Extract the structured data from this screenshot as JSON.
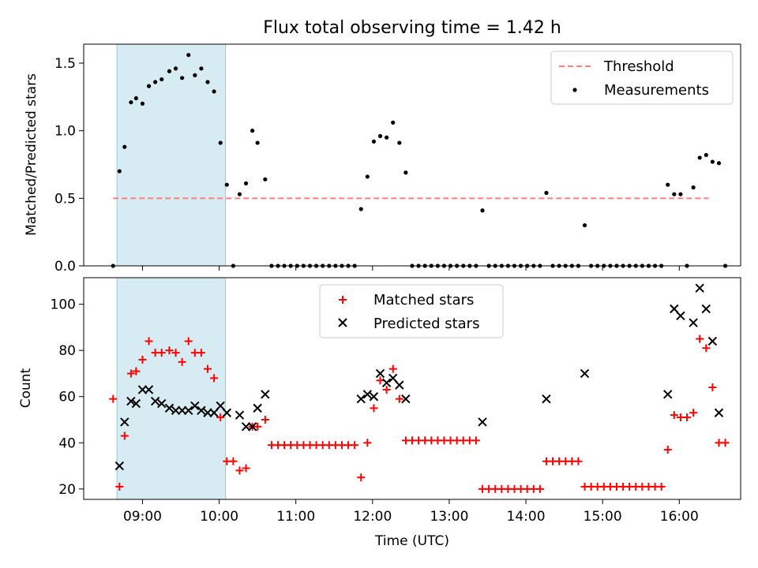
{
  "figure_title": "Flux total observing time = 1.42 h",
  "colors": {
    "threshold": "#ff7f7f",
    "measurements": "#000000",
    "matched": "#ff0000",
    "predicted": "#000000",
    "highlight": "#add8e6"
  },
  "chart_data": [
    {
      "type": "scatter",
      "title": "Flux total observing time = 1.42 h",
      "xlabel": "",
      "ylabel": "Matched/Predicted stars",
      "xlim": [
        "08:14",
        "16:48"
      ],
      "ylim": [
        0,
        1.64
      ],
      "xticks": [
        "09:00",
        "10:00",
        "11:00",
        "12:00",
        "13:00",
        "14:00",
        "15:00",
        "16:00"
      ],
      "yticks": [
        "0.0",
        "0.5",
        "1.0",
        "1.5"
      ],
      "highlight_span": [
        "08:40",
        "10:05"
      ],
      "legend_position": "top-right",
      "threshold": {
        "name": "Threshold",
        "value": 0.5,
        "x_range": [
          "08:37",
          "16:23"
        ]
      },
      "series": [
        {
          "name": "Measurements",
          "marker": "dot",
          "points": [
            [
              "08:37",
              0.0
            ],
            [
              "08:42",
              0.7
            ],
            [
              "08:46",
              0.88
            ],
            [
              "08:51",
              1.21
            ],
            [
              "08:55",
              1.24
            ],
            [
              "09:00",
              1.2
            ],
            [
              "09:05",
              1.33
            ],
            [
              "09:10",
              1.36
            ],
            [
              "09:15",
              1.38
            ],
            [
              "09:21",
              1.44
            ],
            [
              "09:26",
              1.46
            ],
            [
              "09:31",
              1.39
            ],
            [
              "09:36",
              1.56
            ],
            [
              "09:41",
              1.41
            ],
            [
              "09:46",
              1.46
            ],
            [
              "09:51",
              1.36
            ],
            [
              "09:56",
              1.29
            ],
            [
              "10:01",
              0.91
            ],
            [
              "10:06",
              0.6
            ],
            [
              "10:11",
              0.0
            ],
            [
              "10:16",
              0.53
            ],
            [
              "10:21",
              0.61
            ],
            [
              "10:26",
              1.0
            ],
            [
              "10:30",
              0.91
            ],
            [
              "10:36",
              0.64
            ],
            [
              "10:41",
              0.0
            ],
            [
              "10:46",
              0.0
            ],
            [
              "10:51",
              0.0
            ],
            [
              "10:56",
              0.0
            ],
            [
              "11:01",
              0.0
            ],
            [
              "11:06",
              0.0
            ],
            [
              "11:11",
              0.0
            ],
            [
              "11:16",
              0.0
            ],
            [
              "11:21",
              0.0
            ],
            [
              "11:26",
              0.0
            ],
            [
              "11:31",
              0.0
            ],
            [
              "11:36",
              0.0
            ],
            [
              "11:41",
              0.0
            ],
            [
              "11:46",
              0.0
            ],
            [
              "11:51",
              0.42
            ],
            [
              "11:56",
              0.66
            ],
            [
              "12:01",
              0.92
            ],
            [
              "12:06",
              0.96
            ],
            [
              "12:11",
              0.95
            ],
            [
              "12:16",
              1.06
            ],
            [
              "12:21",
              0.91
            ],
            [
              "12:26",
              0.69
            ],
            [
              "12:31",
              0.0
            ],
            [
              "12:36",
              0.0
            ],
            [
              "12:41",
              0.0
            ],
            [
              "12:46",
              0.0
            ],
            [
              "12:51",
              0.0
            ],
            [
              "12:56",
              0.0
            ],
            [
              "13:01",
              0.0
            ],
            [
              "13:06",
              0.0
            ],
            [
              "13:11",
              0.0
            ],
            [
              "13:16",
              0.0
            ],
            [
              "13:21",
              0.0
            ],
            [
              "13:26",
              0.41
            ],
            [
              "13:31",
              0.0
            ],
            [
              "13:36",
              0.0
            ],
            [
              "13:41",
              0.0
            ],
            [
              "13:46",
              0.0
            ],
            [
              "13:51",
              0.0
            ],
            [
              "13:56",
              0.0
            ],
            [
              "14:01",
              0.0
            ],
            [
              "14:06",
              0.0
            ],
            [
              "14:11",
              0.0
            ],
            [
              "14:16",
              0.54
            ],
            [
              "14:21",
              0.0
            ],
            [
              "14:26",
              0.0
            ],
            [
              "14:31",
              0.0
            ],
            [
              "14:36",
              0.0
            ],
            [
              "14:41",
              0.0
            ],
            [
              "14:46",
              0.3
            ],
            [
              "14:51",
              0.0
            ],
            [
              "14:56",
              0.0
            ],
            [
              "15:01",
              0.0
            ],
            [
              "15:06",
              0.0
            ],
            [
              "15:11",
              0.0
            ],
            [
              "15:16",
              0.0
            ],
            [
              "15:21",
              0.0
            ],
            [
              "15:26",
              0.0
            ],
            [
              "15:31",
              0.0
            ],
            [
              "15:36",
              0.0
            ],
            [
              "15:41",
              0.0
            ],
            [
              "15:46",
              0.0
            ],
            [
              "15:51",
              0.6
            ],
            [
              "15:56",
              0.53
            ],
            [
              "16:01",
              0.53
            ],
            [
              "16:06",
              0.0
            ],
            [
              "16:11",
              0.58
            ],
            [
              "16:16",
              0.8
            ],
            [
              "16:21",
              0.82
            ],
            [
              "16:26",
              0.77
            ],
            [
              "16:31",
              0.76
            ],
            [
              "16:36",
              0.0
            ]
          ]
        }
      ]
    },
    {
      "type": "scatter",
      "title": "",
      "xlabel": "Time (UTC)",
      "ylabel": "Count",
      "xlim": [
        "08:14",
        "16:48"
      ],
      "ylim": [
        15.5,
        111.5
      ],
      "xticks": [
        "09:00",
        "10:00",
        "11:00",
        "12:00",
        "13:00",
        "14:00",
        "15:00",
        "16:00"
      ],
      "yticks": [
        "20",
        "40",
        "60",
        "80",
        "100"
      ],
      "highlight_span": [
        "08:40",
        "10:05"
      ],
      "legend_position": "top-center",
      "series": [
        {
          "name": "Matched stars",
          "marker": "plus",
          "points": [
            [
              "08:37",
              59
            ],
            [
              "08:42",
              21
            ],
            [
              "08:46",
              43
            ],
            [
              "08:51",
              70
            ],
            [
              "08:55",
              71
            ],
            [
              "09:00",
              76
            ],
            [
              "09:05",
              84
            ],
            [
              "09:10",
              79
            ],
            [
              "09:15",
              79
            ],
            [
              "09:21",
              80
            ],
            [
              "09:26",
              79
            ],
            [
              "09:31",
              75
            ],
            [
              "09:36",
              84
            ],
            [
              "09:41",
              79
            ],
            [
              "09:46",
              79
            ],
            [
              "09:51",
              72
            ],
            [
              "09:56",
              68
            ],
            [
              "10:01",
              51
            ],
            [
              "10:06",
              32
            ],
            [
              "10:11",
              32
            ],
            [
              "10:16",
              28
            ],
            [
              "10:21",
              29
            ],
            [
              "10:26",
              47
            ],
            [
              "10:30",
              47
            ],
            [
              "10:36",
              50
            ],
            [
              "10:41",
              39
            ],
            [
              "10:46",
              39
            ],
            [
              "10:51",
              39
            ],
            [
              "10:56",
              39
            ],
            [
              "11:01",
              39
            ],
            [
              "11:06",
              39
            ],
            [
              "11:11",
              39
            ],
            [
              "11:16",
              39
            ],
            [
              "11:21",
              39
            ],
            [
              "11:26",
              39
            ],
            [
              "11:31",
              39
            ],
            [
              "11:36",
              39
            ],
            [
              "11:41",
              39
            ],
            [
              "11:46",
              39
            ],
            [
              "11:51",
              25
            ],
            [
              "11:56",
              40
            ],
            [
              "12:01",
              55
            ],
            [
              "12:06",
              67
            ],
            [
              "12:11",
              63
            ],
            [
              "12:16",
              72
            ],
            [
              "12:21",
              59
            ],
            [
              "12:26",
              41
            ],
            [
              "12:31",
              41
            ],
            [
              "12:36",
              41
            ],
            [
              "12:41",
              41
            ],
            [
              "12:46",
              41
            ],
            [
              "12:51",
              41
            ],
            [
              "12:56",
              41
            ],
            [
              "13:01",
              41
            ],
            [
              "13:06",
              41
            ],
            [
              "13:11",
              41
            ],
            [
              "13:16",
              41
            ],
            [
              "13:21",
              41
            ],
            [
              "13:26",
              20
            ],
            [
              "13:31",
              20
            ],
            [
              "13:36",
              20
            ],
            [
              "13:41",
              20
            ],
            [
              "13:46",
              20
            ],
            [
              "13:51",
              20
            ],
            [
              "13:56",
              20
            ],
            [
              "14:01",
              20
            ],
            [
              "14:06",
              20
            ],
            [
              "14:11",
              20
            ],
            [
              "14:16",
              32
            ],
            [
              "14:21",
              32
            ],
            [
              "14:26",
              32
            ],
            [
              "14:31",
              32
            ],
            [
              "14:36",
              32
            ],
            [
              "14:41",
              32
            ],
            [
              "14:46",
              21
            ],
            [
              "14:51",
              21
            ],
            [
              "14:56",
              21
            ],
            [
              "15:01",
              21
            ],
            [
              "15:06",
              21
            ],
            [
              "15:11",
              21
            ],
            [
              "15:16",
              21
            ],
            [
              "15:21",
              21
            ],
            [
              "15:26",
              21
            ],
            [
              "15:31",
              21
            ],
            [
              "15:36",
              21
            ],
            [
              "15:41",
              21
            ],
            [
              "15:46",
              21
            ],
            [
              "15:51",
              37
            ],
            [
              "15:56",
              52
            ],
            [
              "16:01",
              51
            ],
            [
              "16:06",
              51
            ],
            [
              "16:11",
              53
            ],
            [
              "16:16",
              85
            ],
            [
              "16:21",
              81
            ],
            [
              "16:26",
              64
            ],
            [
              "16:31",
              40
            ],
            [
              "16:36",
              40
            ]
          ]
        },
        {
          "name": "Predicted stars",
          "marker": "x",
          "points": [
            [
              "08:42",
              30
            ],
            [
              "08:46",
              49
            ],
            [
              "08:51",
              58
            ],
            [
              "08:55",
              57
            ],
            [
              "09:00",
              63
            ],
            [
              "09:05",
              63
            ],
            [
              "09:10",
              58
            ],
            [
              "09:15",
              57
            ],
            [
              "09:21",
              55
            ],
            [
              "09:26",
              54
            ],
            [
              "09:31",
              54
            ],
            [
              "09:36",
              54
            ],
            [
              "09:41",
              56
            ],
            [
              "09:46",
              54
            ],
            [
              "09:51",
              53
            ],
            [
              "09:56",
              53
            ],
            [
              "10:01",
              56
            ],
            [
              "10:06",
              53
            ],
            [
              "10:16",
              52
            ],
            [
              "10:21",
              47
            ],
            [
              "10:26",
              47
            ],
            [
              "10:30",
              55
            ],
            [
              "10:36",
              61
            ],
            [
              "11:51",
              59
            ],
            [
              "11:56",
              61
            ],
            [
              "12:01",
              60
            ],
            [
              "12:06",
              70
            ],
            [
              "12:11",
              66
            ],
            [
              "12:16",
              68
            ],
            [
              "12:21",
              65
            ],
            [
              "12:26",
              59
            ],
            [
              "13:26",
              49
            ],
            [
              "14:16",
              59
            ],
            [
              "14:46",
              70
            ],
            [
              "15:51",
              61
            ],
            [
              "15:56",
              98
            ],
            [
              "16:01",
              95
            ],
            [
              "16:11",
              92
            ],
            [
              "16:16",
              107
            ],
            [
              "16:21",
              98
            ],
            [
              "16:26",
              84
            ],
            [
              "16:31",
              53
            ]
          ]
        }
      ]
    }
  ]
}
